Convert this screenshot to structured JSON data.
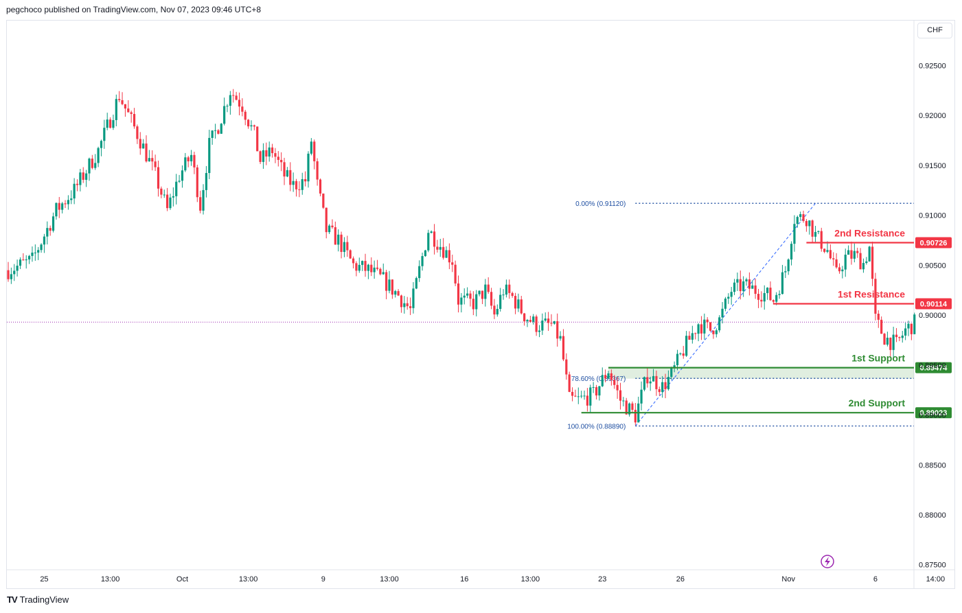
{
  "header": {
    "publisher_text": "pegchoco published on TradingView.com, Nov 07, 2023 09:46 UTC+8"
  },
  "toolbar": {
    "currency": "CHF"
  },
  "footer": {
    "brand": "TradingView"
  },
  "colors": {
    "up": "#089981",
    "down": "#f23645",
    "resistance": "#f23645",
    "support": "#2e8b32",
    "fib": "#2962ff"
  },
  "chart_data": {
    "type": "candlestick",
    "title": "",
    "y_axis": {
      "range": [
        0.8745,
        0.9295
      ],
      "ticks": [
        0.925,
        0.92,
        0.915,
        0.91,
        0.905,
        0.9,
        0.895,
        0.89,
        0.885,
        0.88,
        0.875
      ],
      "tick_labels": [
        "0.92500",
        "0.92000",
        "0.91500",
        "0.91000",
        "0.90500",
        "0.90000",
        "0.89500",
        "0.89000",
        "0.88500",
        "0.88000",
        "0.87500"
      ]
    },
    "x_axis": {
      "ticks": [
        {
          "label": "25",
          "index": 12
        },
        {
          "label": "13:00",
          "index": 34
        },
        {
          "label": "Oct",
          "index": 58
        },
        {
          "label": "13:00",
          "index": 80
        },
        {
          "label": "9",
          "index": 105
        },
        {
          "label": "13:00",
          "index": 127
        },
        {
          "label": "16",
          "index": 152
        },
        {
          "label": "13:00",
          "index": 174
        },
        {
          "label": "23",
          "index": 198
        },
        {
          "label": "26",
          "index": 224
        },
        {
          "label": "Nov",
          "index": 260
        },
        {
          "label": "6",
          "index": 289
        },
        {
          "label": "14:00",
          "index": 309
        }
      ]
    },
    "current_price": 0.8993,
    "levels": [
      {
        "name": "2nd Resistance",
        "value": 0.90726,
        "label": "0.90726",
        "kind": "resistance",
        "from_index": 266
      },
      {
        "name": "1st Resistance",
        "value": 0.90114,
        "label": "0.90114",
        "kind": "resistance",
        "from_index": 255
      },
      {
        "name": "1st Support",
        "value": 0.89474,
        "label": "0.89474",
        "kind": "support",
        "from_index": 200
      },
      {
        "name": "2nd Support",
        "value": 0.89023,
        "label": "0.89023",
        "kind": "support",
        "from_index": 191
      }
    ],
    "support_zone": {
      "from": 0.89364,
      "to": 0.89474
    },
    "fibonacci": {
      "levels": [
        {
          "label": "0.00% (0.91120)",
          "value": 0.9112
        },
        {
          "label": "78.60% (0.89367)",
          "value": 0.89367
        },
        {
          "label": "100.00% (0.88890)",
          "value": 0.8889
        }
      ],
      "trend_from": {
        "index": 209,
        "price": 0.8889
      },
      "trend_to": {
        "index": 269,
        "price": 0.9112
      }
    },
    "waypoints": [
      [
        0,
        0.9045
      ],
      [
        8,
        0.9055
      ],
      [
        16,
        0.9105
      ],
      [
        22,
        0.9125
      ],
      [
        30,
        0.9165
      ],
      [
        37,
        0.922
      ],
      [
        44,
        0.9175
      ],
      [
        49,
        0.914
      ],
      [
        53,
        0.9105
      ],
      [
        57,
        0.914
      ],
      [
        61,
        0.916
      ],
      [
        64,
        0.911
      ],
      [
        67,
        0.917
      ],
      [
        70,
        0.919
      ],
      [
        74,
        0.9225
      ],
      [
        78,
        0.921
      ],
      [
        82,
        0.918
      ],
      [
        84,
        0.9155
      ],
      [
        88,
        0.9165
      ],
      [
        92,
        0.914
      ],
      [
        95,
        0.913
      ],
      [
        99,
        0.9135
      ],
      [
        101,
        0.9175
      ],
      [
        103,
        0.913
      ],
      [
        106,
        0.9085
      ],
      [
        110,
        0.9075
      ],
      [
        115,
        0.905
      ],
      [
        120,
        0.9045
      ],
      [
        125,
        0.9035
      ],
      [
        130,
        0.902
      ],
      [
        134,
        0.9005
      ],
      [
        137,
        0.9045
      ],
      [
        140,
        0.9085
      ],
      [
        144,
        0.907
      ],
      [
        148,
        0.9055
      ],
      [
        150,
        0.9015
      ],
      [
        155,
        0.9012
      ],
      [
        159,
        0.9025
      ],
      [
        162,
        0.9
      ],
      [
        165,
        0.9025
      ],
      [
        168,
        0.9018
      ],
      [
        172,
        0.9
      ],
      [
        176,
        0.899
      ],
      [
        181,
        0.899
      ],
      [
        184,
        0.8975
      ],
      [
        187,
        0.8915
      ],
      [
        190,
        0.8915
      ],
      [
        195,
        0.892
      ],
      [
        200,
        0.8945
      ],
      [
        204,
        0.8915
      ],
      [
        209,
        0.8899
      ],
      [
        213,
        0.894
      ],
      [
        218,
        0.8928
      ],
      [
        221,
        0.894
      ],
      [
        225,
        0.8965
      ],
      [
        230,
        0.8992
      ],
      [
        234,
        0.8985
      ],
      [
        237,
        0.8995
      ],
      [
        241,
        0.9025
      ],
      [
        245,
        0.903
      ],
      [
        249,
        0.9025
      ],
      [
        253,
        0.902
      ],
      [
        255,
        0.9015
      ],
      [
        259,
        0.9045
      ],
      [
        262,
        0.9097
      ],
      [
        266,
        0.9098
      ],
      [
        269,
        0.908
      ],
      [
        273,
        0.9065
      ],
      [
        276,
        0.904
      ],
      [
        279,
        0.9058
      ],
      [
        282,
        0.906
      ],
      [
        285,
        0.9052
      ],
      [
        287,
        0.9068
      ],
      [
        289,
        0.8995
      ],
      [
        292,
        0.8978
      ],
      [
        296,
        0.897
      ],
      [
        299,
        0.8985
      ],
      [
        302,
        0.8992
      ]
    ],
    "count": 303
  }
}
